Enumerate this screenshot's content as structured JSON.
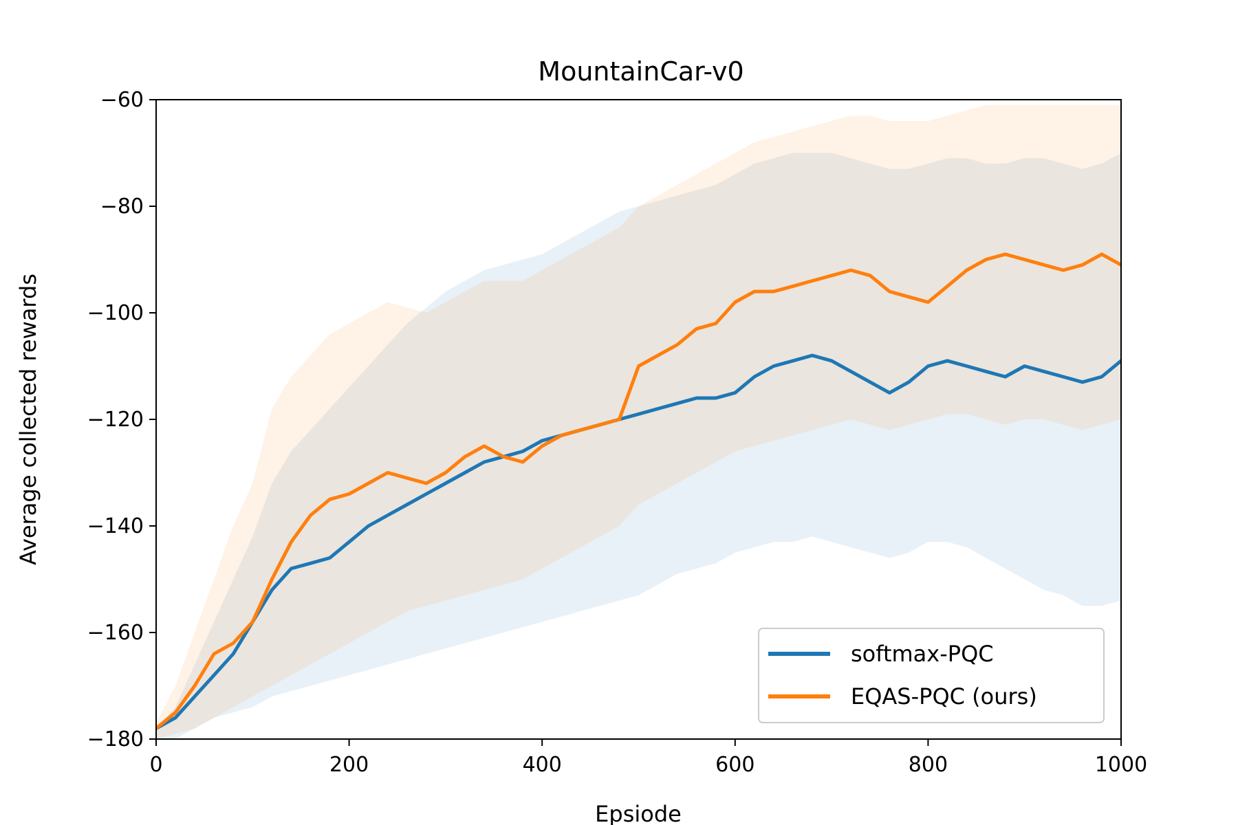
{
  "chart_data": {
    "type": "line",
    "title": "MountainCar-v0",
    "xlabel": "Epsiode",
    "ylabel": "Average collected rewards",
    "xlim": [
      0,
      1000
    ],
    "ylim": [
      -180,
      -60
    ],
    "xticks": [
      0,
      200,
      400,
      600,
      800,
      1000
    ],
    "yticks": [
      -180,
      -160,
      -140,
      -120,
      -100,
      -80,
      -60
    ],
    "ytick_labels": [
      "−180",
      "−160",
      "−140",
      "−120",
      "−100",
      "−80",
      "−60"
    ],
    "legend_position": "lower-right",
    "series": [
      {
        "name": "softmax-PQC",
        "color": "#1f77b4",
        "band_color": "#1f77b4",
        "x": [
          0,
          20,
          40,
          60,
          80,
          100,
          120,
          140,
          160,
          180,
          200,
          220,
          240,
          260,
          280,
          300,
          320,
          340,
          360,
          380,
          400,
          420,
          440,
          460,
          480,
          500,
          520,
          540,
          560,
          580,
          600,
          620,
          640,
          660,
          680,
          700,
          720,
          740,
          760,
          780,
          800,
          820,
          840,
          860,
          880,
          900,
          920,
          940,
          960,
          980,
          1000
        ],
        "values": [
          -178,
          -176,
          -172,
          -168,
          -164,
          -158,
          -152,
          -148,
          -147,
          -146,
          -143,
          -140,
          -138,
          -136,
          -134,
          -132,
          -130,
          -128,
          -127,
          -126,
          -124,
          -123,
          -122,
          -121,
          -120,
          -119,
          -118,
          -117,
          -116,
          -116,
          -115,
          -112,
          -110,
          -109,
          -108,
          -109,
          -111,
          -113,
          -115,
          -113,
          -110,
          -109,
          -110,
          -111,
          -112,
          -110,
          -111,
          -112,
          -113,
          -112,
          -109
        ],
        "upper": [
          -178,
          -174,
          -166,
          -158,
          -150,
          -142,
          -132,
          -126,
          -122,
          -118,
          -114,
          -110,
          -106,
          -102,
          -99,
          -96,
          -94,
          -92,
          -91,
          -90,
          -89,
          -87,
          -85,
          -83,
          -81,
          -80,
          -79,
          -78,
          -77,
          -76,
          -74,
          -72,
          -71,
          -70,
          -70,
          -70,
          -71,
          -72,
          -73,
          -73,
          -72,
          -71,
          -71,
          -72,
          -72,
          -71,
          -71,
          -72,
          -73,
          -72,
          -70
        ],
        "lower": [
          -180,
          -180,
          -178,
          -176,
          -175,
          -174,
          -172,
          -171,
          -170,
          -169,
          -168,
          -167,
          -166,
          -165,
          -164,
          -163,
          -162,
          -161,
          -160,
          -159,
          -158,
          -157,
          -156,
          -155,
          -154,
          -153,
          -151,
          -149,
          -148,
          -147,
          -145,
          -144,
          -143,
          -143,
          -142,
          -143,
          -144,
          -145,
          -146,
          -145,
          -143,
          -143,
          -144,
          -146,
          -148,
          -150,
          -152,
          -153,
          -155,
          -155,
          -154
        ]
      },
      {
        "name": "EQAS-PQC (ours)",
        "color": "#ff7f0e",
        "band_color": "#ff7f0e",
        "x": [
          0,
          20,
          40,
          60,
          80,
          100,
          120,
          140,
          160,
          180,
          200,
          220,
          240,
          260,
          280,
          300,
          320,
          340,
          360,
          380,
          400,
          420,
          440,
          460,
          480,
          500,
          520,
          540,
          560,
          580,
          600,
          620,
          640,
          660,
          680,
          700,
          720,
          740,
          760,
          780,
          800,
          820,
          840,
          860,
          880,
          900,
          920,
          940,
          960,
          980,
          1000
        ],
        "values": [
          -178,
          -175,
          -170,
          -164,
          -162,
          -158,
          -150,
          -143,
          -138,
          -135,
          -134,
          -132,
          -130,
          -131,
          -132,
          -130,
          -127,
          -125,
          -127,
          -128,
          -125,
          -123,
          -122,
          -121,
          -120,
          -110,
          -108,
          -106,
          -103,
          -102,
          -98,
          -96,
          -96,
          -95,
          -94,
          -93,
          -92,
          -93,
          -96,
          -97,
          -98,
          -95,
          -92,
          -90,
          -89,
          -90,
          -91,
          -92,
          -91,
          -89,
          -91
        ],
        "upper": [
          -177,
          -170,
          -160,
          -150,
          -140,
          -132,
          -118,
          -112,
          -108,
          -104,
          -102,
          -100,
          -98,
          -99,
          -100,
          -98,
          -96,
          -94,
          -94,
          -94,
          -92,
          -90,
          -88,
          -86,
          -84,
          -80,
          -78,
          -76,
          -74,
          -72,
          -70,
          -68,
          -67,
          -66,
          -65,
          -64,
          -63,
          -63,
          -64,
          -64,
          -64,
          -63,
          -62,
          -61,
          -61,
          -61,
          -61,
          -61,
          -61,
          -61,
          -61
        ],
        "lower": [
          -180,
          -179,
          -178,
          -176,
          -174,
          -172,
          -170,
          -168,
          -166,
          -164,
          -162,
          -160,
          -158,
          -156,
          -155,
          -154,
          -153,
          -152,
          -151,
          -150,
          -148,
          -146,
          -144,
          -142,
          -140,
          -136,
          -134,
          -132,
          -130,
          -128,
          -126,
          -125,
          -124,
          -123,
          -122,
          -121,
          -120,
          -121,
          -122,
          -121,
          -120,
          -119,
          -119,
          -120,
          -121,
          -120,
          -120,
          -121,
          -122,
          -121,
          -120
        ]
      }
    ]
  }
}
